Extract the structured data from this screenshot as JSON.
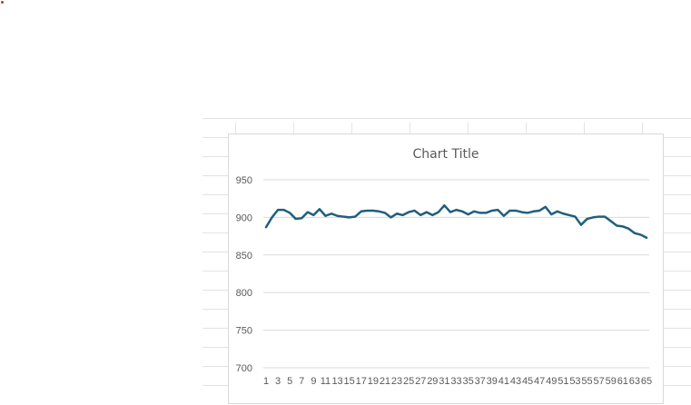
{
  "chart_data": {
    "type": "line",
    "title": "Chart Title",
    "xlabel": "",
    "ylabel": "",
    "ylim": [
      700,
      950
    ],
    "yticks": [
      700,
      750,
      800,
      850,
      900,
      950
    ],
    "xtick_labels": [
      "1",
      "3",
      "5",
      "7",
      "9",
      "11",
      "13",
      "15",
      "17",
      "19",
      "21",
      "23",
      "25",
      "27",
      "29",
      "31",
      "33",
      "35",
      "37",
      "39",
      "41",
      "43",
      "45",
      "47",
      "49",
      "51",
      "53",
      "55",
      "57",
      "59",
      "61",
      "63",
      "65"
    ],
    "grid": "horizontal",
    "legend": "none",
    "series": [
      {
        "color": "#1f5f7f",
        "x": [
          1,
          2,
          3,
          4,
          5,
          6,
          7,
          8,
          9,
          10,
          11,
          12,
          13,
          14,
          15,
          16,
          17,
          18,
          19,
          20,
          21,
          22,
          23,
          24,
          25,
          26,
          27,
          28,
          29,
          30,
          31,
          32,
          33,
          34,
          35,
          36,
          37,
          38,
          39,
          40,
          41,
          42,
          43,
          44,
          45,
          46,
          47,
          48,
          49,
          50,
          51,
          52,
          53,
          54,
          55,
          56,
          57,
          58,
          59,
          60,
          61,
          62,
          63,
          64,
          65
        ],
        "values": [
          887,
          900,
          910,
          910,
          906,
          898,
          899,
          907,
          903,
          911,
          902,
          905,
          902,
          901,
          900,
          901,
          908,
          909,
          909,
          908,
          906,
          900,
          905,
          903,
          907,
          909,
          903,
          907,
          903,
          907,
          916,
          907,
          910,
          908,
          904,
          908,
          906,
          906,
          909,
          910,
          902,
          909,
          909,
          907,
          906,
          908,
          909,
          914,
          904,
          908,
          905,
          903,
          901,
          890,
          898,
          900,
          901,
          901,
          895,
          889,
          888,
          885,
          879,
          877,
          873
        ]
      }
    ]
  }
}
